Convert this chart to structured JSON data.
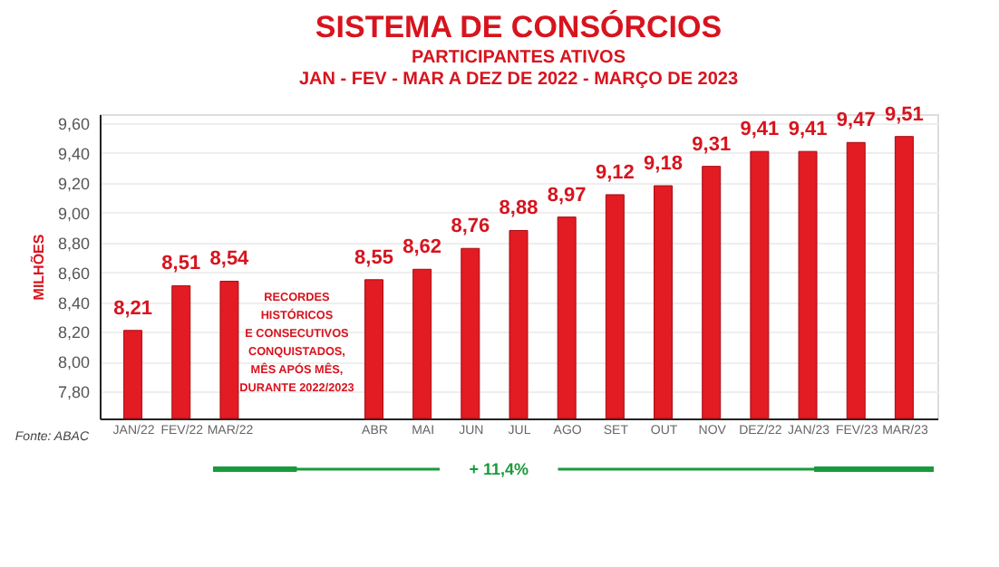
{
  "chart_data": {
    "type": "bar",
    "title": "SISTEMA DE CONSÓRCIOS",
    "subtitle": "PARTICIPANTES ATIVOS\nJAN - FEV - MAR A DEZ DE 2022 - MARÇO DE 2023",
    "ylabel": "MILHÕES",
    "categories": [
      "JAN/22",
      "FEV/22",
      "MAR/22",
      null,
      null,
      "ABR",
      "MAI",
      "JUN",
      "JUL",
      "AGO",
      "SET",
      "OUT",
      "NOV",
      "DEZ/22",
      "JAN/23",
      "FEV/23",
      "MAR/23"
    ],
    "values": [
      8.21,
      8.51,
      8.54,
      null,
      null,
      8.55,
      8.62,
      8.76,
      8.88,
      8.97,
      9.12,
      9.18,
      9.31,
      9.41,
      9.41,
      9.47,
      9.51
    ],
    "value_labels": [
      "8,21",
      "8,51",
      "8,54",
      null,
      null,
      "8,55",
      "8,62",
      "8,76",
      "8,88",
      "8,97",
      "9,12",
      "9,18",
      "9,31",
      "9,41",
      "9,41",
      "9,47",
      "9,51"
    ],
    "color": "#e31b23",
    "ylim": [
      7.62,
      9.66
    ],
    "yticks": [
      {
        "value": 7.8,
        "label": "7,80"
      },
      {
        "value": 8.0,
        "label": "8,00"
      },
      {
        "value": 8.2,
        "label": "8,20"
      },
      {
        "value": 8.4,
        "label": "8,40"
      },
      {
        "value": 8.6,
        "label": "8,60"
      },
      {
        "value": 8.8,
        "label": "8,80"
      },
      {
        "value": 9.0,
        "label": "9,00"
      },
      {
        "value": 9.2,
        "label": "9,20"
      },
      {
        "value": 9.4,
        "label": "9,40"
      },
      {
        "value": 9.6,
        "label": "9,60"
      }
    ],
    "grid": "y",
    "annotations": [
      "RECORDES\nHISTÓRICOS\nE CONSECUTIVOS\nCONQUISTADOS,\nMÊS APÓS MÊS,\nDURANTE 2022/2023",
      "+ 11,4%",
      "Fonte: ABAC"
    ]
  }
}
